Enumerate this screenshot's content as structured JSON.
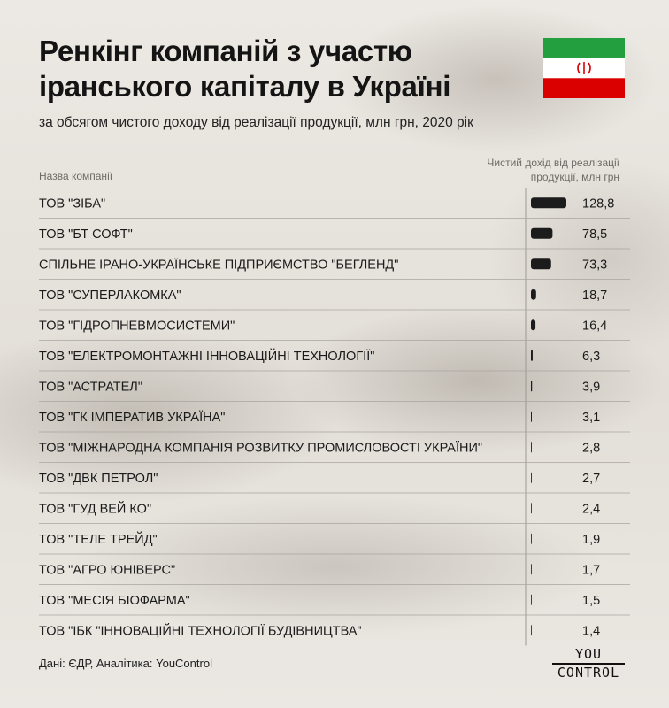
{
  "header": {
    "title": "Ренкінг компаній з участю іранського капіталу в Україні",
    "subtitle": "за обсягом чистого доходу від реалізації продукції, млн грн, 2020 рік"
  },
  "columns": {
    "company": "Назва компанії",
    "revenue_line1": "Чистий дохід від реалізації",
    "revenue_line2": "продукції, млн грн"
  },
  "chart_data": {
    "type": "bar",
    "orientation": "horizontal",
    "categories": [
      "ТОВ \"ЗІБА\"",
      "ТОВ \"БТ СОФТ\"",
      "СПІЛЬНЕ ІРАНО-УКРАЇНСЬКЕ ПІДПРИЄМСТВО \"БЕГЛЕНД\"",
      "ТОВ \"СУПЕРЛАКОМКА\"",
      "ТОВ \"ГІДРОПНЕВМОСИСТЕМИ\"",
      "ТОВ \"ЕЛЕКТРОМОНТАЖНІ ІННОВАЦІЙНІ ТЕХНОЛОГІЇ\"",
      "ТОВ \"АСТРАТЕЛ\"",
      "ТОВ \"ГК ІМПЕРАТИВ УКРАЇНА\"",
      "ТОВ \"МІЖНАРОДНА КОМПАНІЯ РОЗВИТКУ ПРОМИСЛОВОСТІ УКРАЇНИ\"",
      "ТОВ \"ДВК ПЕТРОЛ\"",
      "ТОВ \"ГУД ВЕЙ КО\"",
      "ТОВ \"ТЕЛЕ ТРЕЙД\"",
      "ТОВ \"АГРО ЮНІВЕРС\"",
      "ТОВ \"МЕСІЯ БІОФАРМА\"",
      "ТОВ \"ІБК \"ІННОВАЦІЙНІ ТЕХНОЛОГІЇ БУДІВНИЦТВА\""
    ],
    "values": [
      128.8,
      78.5,
      73.3,
      18.7,
      16.4,
      6.3,
      3.9,
      3.1,
      2.8,
      2.7,
      2.4,
      1.9,
      1.7,
      1.5,
      1.4
    ],
    "value_labels": [
      "128,8",
      "78,5",
      "73,3",
      "18,7",
      "16,4",
      "6,3",
      "3,9",
      "3,1",
      "2,8",
      "2,7",
      "2,4",
      "1,9",
      "1,7",
      "1,5",
      "1,4"
    ],
    "xlim": [
      0,
      128.8
    ],
    "bar_color": "#1c1c1c",
    "grid": false
  },
  "footer": {
    "source": "Дані: ЄДР, Аналітика: YouControl",
    "logo_top": "YOU",
    "logo_bottom": "CONTROL"
  },
  "colors": {
    "flag_green": "#239f40",
    "flag_white": "#ffffff",
    "flag_red": "#da0000",
    "emblem": "#da0000"
  }
}
